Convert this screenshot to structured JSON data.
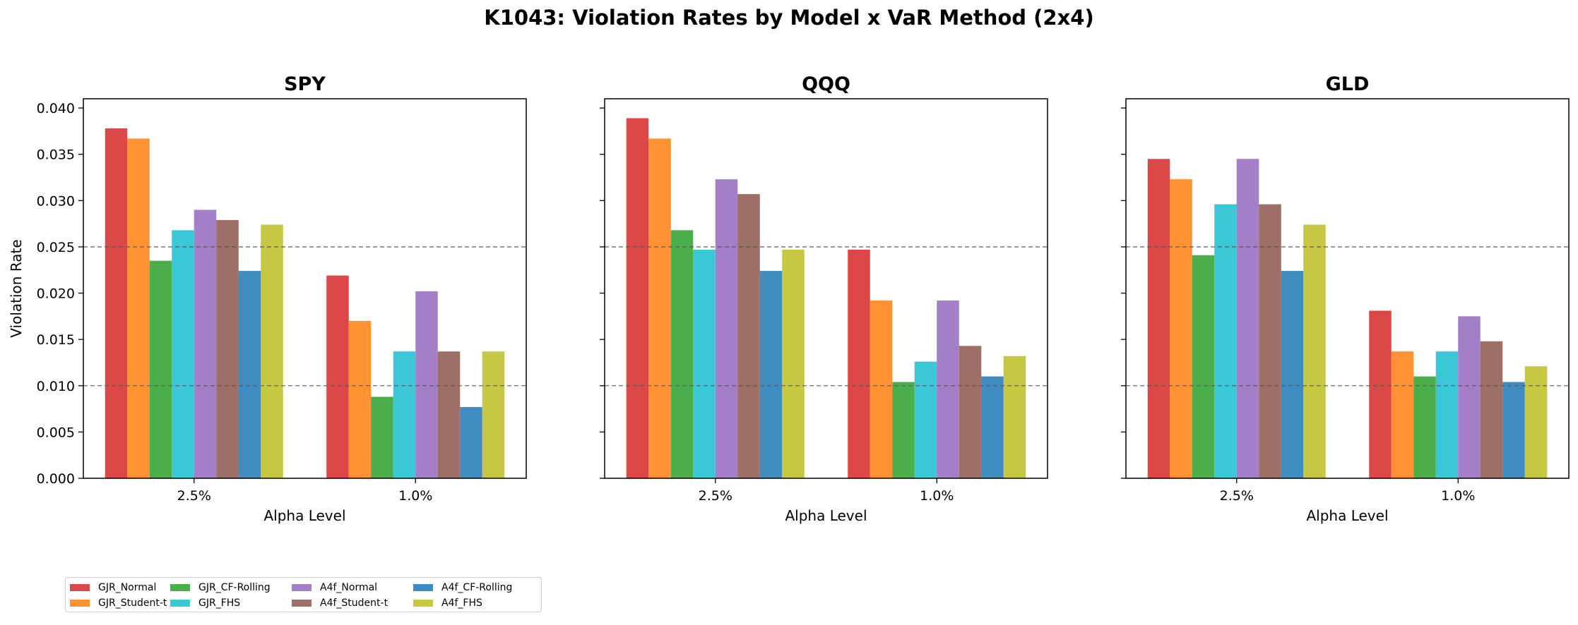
{
  "title": "K1043: Violation Rates by Model x VaR Method (2x4)",
  "chart_data": {
    "type": "bar",
    "categories": [
      "2.5%",
      "1.0%"
    ],
    "xlabel": "Alpha Level",
    "ylabel": "Violation Rate",
    "ylim": [
      0,
      0.041
    ],
    "yticks": [
      "0.000",
      "0.005",
      "0.010",
      "0.015",
      "0.020",
      "0.025",
      "0.030",
      "0.035",
      "0.040"
    ],
    "reference_lines": [
      0.025,
      0.01
    ],
    "legend_position": "bottom-left",
    "series_meta": [
      {
        "name": "GJR_Normal",
        "color": "#d62728"
      },
      {
        "name": "GJR_Student-t",
        "color": "#ff7f0e"
      },
      {
        "name": "GJR_CF-Rolling",
        "color": "#2ca02c"
      },
      {
        "name": "GJR_FHS",
        "color": "#17becf"
      },
      {
        "name": "A4f_Normal",
        "color": "#9467bd"
      },
      {
        "name": "A4f_Student-t",
        "color": "#8c564b"
      },
      {
        "name": "A4f_CF-Rolling",
        "color": "#1f77b4"
      },
      {
        "name": "A4f_FHS",
        "color": "#bcbd22"
      }
    ],
    "panels": [
      {
        "title": "SPY",
        "series": [
          {
            "name": "GJR_Normal",
            "values": [
              0.0378,
              0.0219
            ]
          },
          {
            "name": "GJR_Student-t",
            "values": [
              0.0367,
              0.017
            ]
          },
          {
            "name": "GJR_CF-Rolling",
            "values": [
              0.0235,
              0.0088
            ]
          },
          {
            "name": "GJR_FHS",
            "values": [
              0.0268,
              0.0137
            ]
          },
          {
            "name": "A4f_Normal",
            "values": [
              0.029,
              0.0202
            ]
          },
          {
            "name": "A4f_Student-t",
            "values": [
              0.0279,
              0.0137
            ]
          },
          {
            "name": "A4f_CF-Rolling",
            "values": [
              0.0224,
              0.0077
            ]
          },
          {
            "name": "A4f_FHS",
            "values": [
              0.0274,
              0.0137
            ]
          }
        ]
      },
      {
        "title": "QQQ",
        "series": [
          {
            "name": "GJR_Normal",
            "values": [
              0.0389,
              0.0247
            ]
          },
          {
            "name": "GJR_Student-t",
            "values": [
              0.0367,
              0.0192
            ]
          },
          {
            "name": "GJR_CF-Rolling",
            "values": [
              0.0268,
              0.0104
            ]
          },
          {
            "name": "GJR_FHS",
            "values": [
              0.0247,
              0.0126
            ]
          },
          {
            "name": "A4f_Normal",
            "values": [
              0.0323,
              0.0192
            ]
          },
          {
            "name": "A4f_Student-t",
            "values": [
              0.0307,
              0.0143
            ]
          },
          {
            "name": "A4f_CF-Rolling",
            "values": [
              0.0224,
              0.011
            ]
          },
          {
            "name": "A4f_FHS",
            "values": [
              0.0247,
              0.0132
            ]
          }
        ]
      },
      {
        "title": "GLD",
        "series": [
          {
            "name": "GJR_Normal",
            "values": [
              0.0345,
              0.0181
            ]
          },
          {
            "name": "GJR_Student-t",
            "values": [
              0.0323,
              0.0137
            ]
          },
          {
            "name": "GJR_CF-Rolling",
            "values": [
              0.0241,
              0.011
            ]
          },
          {
            "name": "GJR_FHS",
            "values": [
              0.0296,
              0.0137
            ]
          },
          {
            "name": "A4f_Normal",
            "values": [
              0.0345,
              0.0175
            ]
          },
          {
            "name": "A4f_Student-t",
            "values": [
              0.0296,
              0.0148
            ]
          },
          {
            "name": "A4f_CF-Rolling",
            "values": [
              0.0224,
              0.0104
            ]
          },
          {
            "name": "A4f_FHS",
            "values": [
              0.0274,
              0.0121
            ]
          }
        ]
      }
    ]
  }
}
